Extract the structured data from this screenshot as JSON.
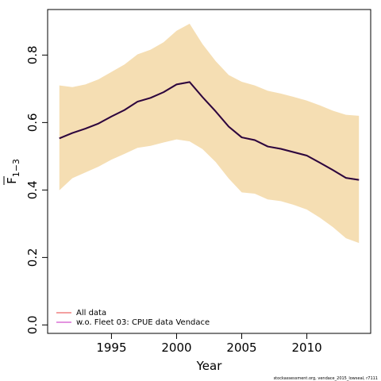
{
  "chart_data": {
    "type": "line",
    "xlabel": "Year",
    "ylabel_main": "F",
    "ylabel_sub": "1−3",
    "xlim": [
      1990.1,
      2014.9
    ],
    "ylim": [
      -0.025,
      0.935
    ],
    "x_ticks": [
      1995,
      2000,
      2005,
      2010
    ],
    "y_ticks": [
      0.0,
      0.2,
      0.4,
      0.6,
      0.8
    ],
    "y_tick_labels": [
      "0.0",
      "0.2",
      "0.4",
      "0.6",
      "0.8"
    ],
    "x": [
      1991,
      1992,
      1993,
      1994,
      1995,
      1996,
      1997,
      1998,
      1999,
      2000,
      2001,
      2002,
      2003,
      2004,
      2005,
      2006,
      2007,
      2008,
      2009,
      2010,
      2011,
      2012,
      2013,
      2014
    ],
    "series": [
      {
        "name": "All data",
        "color": "#f08080",
        "values": [
          0.553,
          0.569,
          0.582,
          0.597,
          0.618,
          0.637,
          0.662,
          0.673,
          0.69,
          0.713,
          0.72,
          0.675,
          0.633,
          0.588,
          0.556,
          0.548,
          0.529,
          0.522,
          0.512,
          0.502,
          0.481,
          0.459,
          0.436,
          0.43
        ],
        "lower": [
          0.399,
          0.435,
          0.452,
          0.469,
          0.49,
          0.507,
          0.525,
          0.531,
          0.541,
          0.55,
          0.544,
          0.521,
          0.483,
          0.434,
          0.393,
          0.389,
          0.372,
          0.367,
          0.356,
          0.342,
          0.318,
          0.29,
          0.257,
          0.243
        ],
        "upper": [
          0.71,
          0.705,
          0.713,
          0.728,
          0.75,
          0.772,
          0.802,
          0.816,
          0.838,
          0.872,
          0.893,
          0.832,
          0.782,
          0.741,
          0.721,
          0.71,
          0.694,
          0.686,
          0.676,
          0.665,
          0.651,
          0.635,
          0.623,
          0.62
        ],
        "band_color": "#f5deb3"
      },
      {
        "name": "w.o. Fleet 03:  CPUE data Vendace",
        "color": "#da70d6",
        "values": [
          0.553,
          0.569,
          0.582,
          0.597,
          0.618,
          0.637,
          0.662,
          0.673,
          0.69,
          0.713,
          0.72,
          0.675,
          0.633,
          0.588,
          0.556,
          0.548,
          0.529,
          0.522,
          0.512,
          0.502,
          0.481,
          0.459,
          0.436,
          0.43
        ]
      }
    ],
    "overlay_line_color": "#2a0a3a",
    "legend_position": "bottom-left",
    "grid": false
  },
  "legend": {
    "items": [
      {
        "label": "All data",
        "color": "#f08080"
      },
      {
        "label": "w.o. Fleet 03:  CPUE data Vendace",
        "color": "#da70d6"
      }
    ]
  },
  "footer": {
    "text": "stockassessment.org, vendace_2015_lowseal, r7111"
  }
}
